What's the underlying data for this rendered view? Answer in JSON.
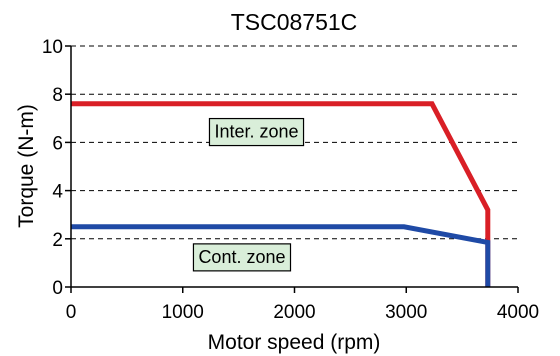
{
  "chart_data": {
    "type": "line",
    "title": "TSC08751C",
    "xlabel": "Motor speed (rpm)",
    "ylabel": "Torque (N-m)",
    "xlim": [
      0,
      4000
    ],
    "ylim": [
      0,
      10
    ],
    "x_ticks": [
      "0",
      "1000",
      "2000",
      "3000",
      "4000"
    ],
    "y_ticks": [
      "0",
      "2",
      "4",
      "6",
      "8",
      "10"
    ],
    "grid": "horizontal dashed",
    "series": [
      {
        "color": "#d91f26",
        "points": [
          [
            0,
            7.6
          ],
          [
            3230,
            7.6
          ],
          [
            3730,
            3.2
          ],
          [
            3730,
            0
          ]
        ]
      },
      {
        "color": "#1f4aa6",
        "points": [
          [
            0,
            2.5
          ],
          [
            2980,
            2.5
          ],
          [
            3730,
            1.85
          ],
          [
            3730,
            0
          ]
        ]
      }
    ],
    "annotations": [
      {
        "text": "Inter. zone",
        "x": 1660,
        "y": 6.45
      },
      {
        "text": "Cont. zone",
        "x": 1530,
        "y": 1.25
      }
    ]
  }
}
